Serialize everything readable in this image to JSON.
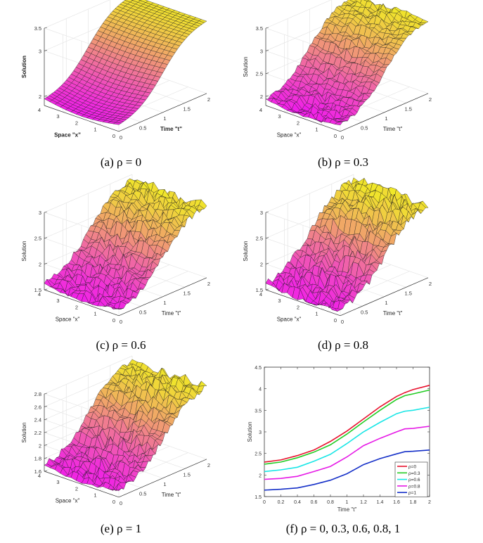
{
  "colors": {
    "magenta": "#f018f0",
    "yellow": "#f0f020",
    "axis": "#333333",
    "grid": "#e6e6e6"
  },
  "chart_data": [
    {
      "type": "surface",
      "id": "a",
      "caption": "(a) ρ = 0",
      "rho": 0,
      "roughness": 0,
      "zlabel": "Solution",
      "xlabel": "Space \"x\"",
      "ylabel": "Time \"t\"",
      "zlim": [
        1.8,
        3.5
      ],
      "zticks": [
        "2",
        "3",
        "3.5"
      ],
      "zticks_values": [
        2,
        3,
        3.5
      ],
      "xticks": [
        "0",
        "1",
        "2",
        "3",
        "4"
      ],
      "tticks": [
        "0",
        "0.5",
        "1",
        "1.5",
        "2"
      ],
      "bold_labels": true
    },
    {
      "type": "surface",
      "id": "b",
      "caption": "(b) ρ = 0.3",
      "rho": 0.3,
      "roughness": 0.06,
      "zlabel": "Solution",
      "xlabel": "Space \"x\"",
      "ylabel": "Time \"t\"",
      "zlim": [
        1.8,
        3.5
      ],
      "zticks": [
        "2",
        "2.5",
        "3",
        "3.5"
      ],
      "zticks_values": [
        2,
        2.5,
        3,
        3.5
      ],
      "xticks": [
        "0",
        "1",
        "2",
        "3",
        "4"
      ],
      "tticks": [
        "0",
        "0.5",
        "1",
        "1.5",
        "2"
      ],
      "bold_labels": false
    },
    {
      "type": "surface",
      "id": "c",
      "caption": "(c) ρ = 0.6",
      "rho": 0.6,
      "roughness": 0.1,
      "zlabel": "Solution",
      "xlabel": "Space \"x\"",
      "ylabel": "Time \"t\"",
      "zlim": [
        1.5,
        3.0
      ],
      "zticks": [
        "1.5",
        "2",
        "2.5",
        "3"
      ],
      "zticks_values": [
        1.5,
        2,
        2.5,
        3
      ],
      "xticks": [
        "0",
        "1",
        "2",
        "3",
        "4"
      ],
      "tticks": [
        "0",
        "0.5",
        "1",
        "1.5",
        "2"
      ],
      "bold_labels": false
    },
    {
      "type": "surface",
      "id": "d",
      "caption": "(d) ρ = 0.8",
      "rho": 0.8,
      "roughness": 0.12,
      "zlabel": "Solution",
      "xlabel": "Space \"x\"",
      "ylabel": "Time \"t\"",
      "zlim": [
        1.5,
        3.0
      ],
      "zticks": [
        "1.5",
        "2",
        "2.5",
        "3"
      ],
      "zticks_values": [
        1.5,
        2,
        2.5,
        3
      ],
      "xticks": [
        "0",
        "1",
        "2",
        "3",
        "4"
      ],
      "tticks": [
        "0",
        "0.5",
        "1",
        "1.5",
        "2"
      ],
      "bold_labels": false
    },
    {
      "type": "surface",
      "id": "e",
      "caption": "(e) ρ = 1",
      "rho": 1,
      "roughness": 0.1,
      "zlabel": "Solution",
      "xlabel": "Space \"x\"",
      "ylabel": "Time \"t\"",
      "zlim": [
        1.6,
        2.8
      ],
      "zticks": [
        "1.6",
        "1.8",
        "2",
        "2.2",
        "2.4",
        "2.6",
        "2.8"
      ],
      "zticks_values": [
        1.6,
        1.8,
        2,
        2.2,
        2.4,
        2.6,
        2.8
      ],
      "xticks": [
        "0",
        "1",
        "2",
        "3",
        "4"
      ],
      "tticks": [
        "0",
        "0.5",
        "1",
        "1.5",
        "2"
      ],
      "bold_labels": false
    },
    {
      "type": "line",
      "id": "f",
      "caption": "(f) ρ = 0,  0.3,  0.6,  0.8,  1",
      "xlabel": "Time \"t\"",
      "ylabel": "Solution",
      "xlim": [
        0,
        2
      ],
      "ylim": [
        1.5,
        4.5
      ],
      "xticks": [
        "0",
        "0.2",
        "0.4",
        "0.6",
        "0.8",
        "1",
        "1.2",
        "1.4",
        "1.6",
        "1.8",
        "2"
      ],
      "xtick_values": [
        0,
        0.2,
        0.4,
        0.6,
        0.8,
        1,
        1.2,
        1.4,
        1.6,
        1.8,
        2
      ],
      "yticks": [
        "1.5",
        "2",
        "2.5",
        "3",
        "3.5",
        "4",
        "4.5"
      ],
      "ytick_values": [
        1.5,
        2,
        2.5,
        3,
        3.5,
        4,
        4.5
      ],
      "legend_position": "bottom-right",
      "x": [
        0,
        0.2,
        0.4,
        0.6,
        0.8,
        1.0,
        1.2,
        1.4,
        1.6,
        1.7,
        1.8,
        2.0
      ],
      "series": [
        {
          "name": "ρ=0",
          "color": "#e8112d",
          "values": [
            2.3,
            2.35,
            2.45,
            2.58,
            2.78,
            3.02,
            3.3,
            3.58,
            3.82,
            3.91,
            3.98,
            4.08
          ]
        },
        {
          "name": "ρ=0.3",
          "color": "#22cc22",
          "values": [
            2.25,
            2.3,
            2.4,
            2.53,
            2.7,
            2.95,
            3.23,
            3.5,
            3.75,
            3.84,
            3.88,
            3.97
          ]
        },
        {
          "name": "ρ=0.6",
          "color": "#19e6e6",
          "values": [
            2.08,
            2.12,
            2.18,
            2.32,
            2.48,
            2.73,
            3.0,
            3.22,
            3.42,
            3.48,
            3.5,
            3.57
          ]
        },
        {
          "name": "ρ=0.8",
          "color": "#e619e6",
          "values": [
            1.9,
            1.92,
            1.97,
            2.08,
            2.2,
            2.42,
            2.68,
            2.85,
            3.0,
            3.07,
            3.08,
            3.13
          ]
        },
        {
          "name": "ρ=1",
          "color": "#1530c8",
          "values": [
            1.65,
            1.67,
            1.7,
            1.78,
            1.88,
            2.03,
            2.24,
            2.38,
            2.49,
            2.54,
            2.55,
            2.58
          ]
        }
      ]
    }
  ]
}
